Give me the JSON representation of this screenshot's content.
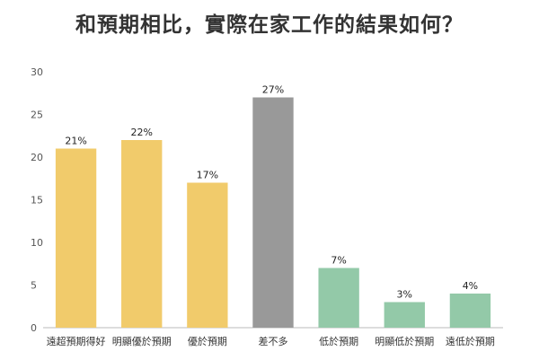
{
  "chart_data": {
    "type": "bar",
    "title": "和預期相比，實際在家工作的結果如何？",
    "categories": [
      "遠超預期得好",
      "明顯優於預期",
      "優於預期",
      "差不多",
      "低於預期",
      "明顯低於預期",
      "遠低於預期"
    ],
    "values": [
      21,
      22,
      17,
      27,
      7,
      3,
      4
    ],
    "data_labels": [
      "21%",
      "22%",
      "17%",
      "27%",
      "7%",
      "3%",
      "4%"
    ],
    "bar_colors": [
      "#F1CB6B",
      "#F1CB6B",
      "#F1CB6B",
      "#999999",
      "#93C9A8",
      "#93C9A8",
      "#93C9A8"
    ],
    "ylim": [
      0,
      30
    ],
    "yticks": [
      0,
      5,
      10,
      15,
      20,
      25,
      30
    ],
    "xlabel": "",
    "ylabel": "",
    "grid": false
  }
}
